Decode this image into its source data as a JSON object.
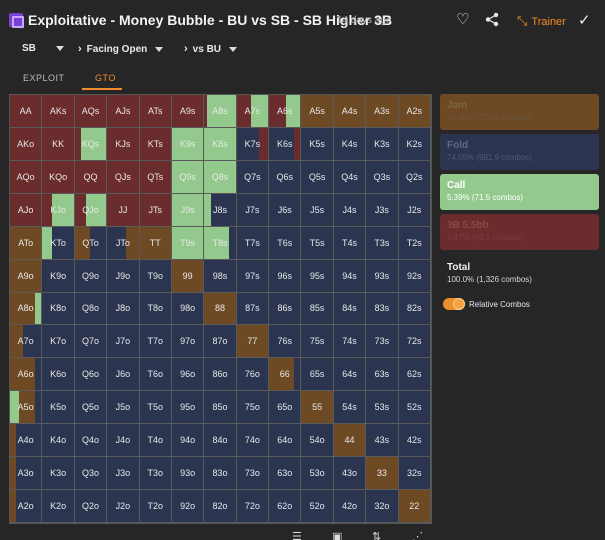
{
  "header": {
    "title": "Exploitative - Money Bubble - BU vs SB - SB Higher 3B",
    "time_ago": "14 days ago",
    "trainer_label": "Trainer",
    "icons": [
      "heart-icon",
      "share-icon",
      "trainer-icon",
      "check-icon"
    ]
  },
  "selectors": {
    "position": "SB",
    "situation": "Facing Open",
    "versus": "vs BU"
  },
  "tabs": [
    {
      "label": "EXPLOIT",
      "active": false
    },
    {
      "label": "GTO",
      "active": true
    }
  ],
  "colors": {
    "jam": "#6e4a24",
    "fold": "#2b3550",
    "call": "#93c98c",
    "threebet": "#6a2c2c"
  },
  "actions": [
    {
      "name": "Jam",
      "value": "13.05% (173.2 combos)",
      "bg": "#6e4a24",
      "text": "#7c6545",
      "sub": "#6a573c"
    },
    {
      "name": "Fold",
      "value": "74.05% (981.9 combos)",
      "bg": "#2b3550",
      "text": "#5e6a8c",
      "sub": "#4f5a78"
    },
    {
      "name": "Call",
      "value": "5.39% (71.5 combos)",
      "bg": "#93c98c",
      "text": "#ffffff",
      "sub": "#ffffff"
    },
    {
      "name": "3B 5.5bb",
      "value": "7.47% (99.1 combos)",
      "bg": "#6a2c2c",
      "text": "#8a4848",
      "sub": "#7a3e3e"
    }
  ],
  "total": {
    "label": "Total",
    "value": "100.0% (1,326 combos)"
  },
  "toggle": {
    "label": "Relative Combos",
    "on": true
  },
  "grid": [
    [
      "AA",
      "AKs",
      "AQs",
      "AJs",
      "ATs",
      "A9s",
      "A8s",
      "A7s",
      "A6s",
      "A5s",
      "A4s",
      "A3s",
      "A2s"
    ],
    [
      "AKo",
      "KK",
      "KQs",
      "KJs",
      "KTs",
      "K9s",
      "K8s",
      "K7s",
      "K6s",
      "K5s",
      "K4s",
      "K3s",
      "K2s"
    ],
    [
      "AQo",
      "KQo",
      "QQ",
      "QJs",
      "QTs",
      "Q9s",
      "Q8s",
      "Q7s",
      "Q6s",
      "Q5s",
      "Q4s",
      "Q3s",
      "Q2s"
    ],
    [
      "AJo",
      "KJo",
      "QJo",
      "JJ",
      "JTs",
      "J9s",
      "J8s",
      "J7s",
      "J6s",
      "J5s",
      "J4s",
      "J3s",
      "J2s"
    ],
    [
      "ATo",
      "KTo",
      "QTo",
      "JTo",
      "TT",
      "T9s",
      "T8s",
      "T7s",
      "T6s",
      "T5s",
      "T4s",
      "T3s",
      "T2s"
    ],
    [
      "A9o",
      "K9o",
      "Q9o",
      "J9o",
      "T9o",
      "99",
      "98s",
      "97s",
      "96s",
      "95s",
      "94s",
      "93s",
      "92s"
    ],
    [
      "A8o",
      "K8o",
      "Q8o",
      "J8o",
      "T8o",
      "98o",
      "88",
      "87s",
      "86s",
      "85s",
      "84s",
      "83s",
      "82s"
    ],
    [
      "A7o",
      "K7o",
      "Q7o",
      "J7o",
      "T7o",
      "97o",
      "87o",
      "77",
      "76s",
      "75s",
      "74s",
      "73s",
      "72s"
    ],
    [
      "A6o",
      "K6o",
      "Q6o",
      "J6o",
      "T6o",
      "96o",
      "86o",
      "76o",
      "66",
      "65s",
      "64s",
      "63s",
      "62s"
    ],
    [
      "A5o",
      "K5o",
      "Q5o",
      "J5o",
      "T5o",
      "95o",
      "85o",
      "75o",
      "65o",
      "55",
      "54s",
      "53s",
      "52s"
    ],
    [
      "A4o",
      "K4o",
      "Q4o",
      "J4o",
      "T4o",
      "94o",
      "84o",
      "74o",
      "64o",
      "54o",
      "44",
      "43s",
      "42s"
    ],
    [
      "A3o",
      "K3o",
      "Q3o",
      "J3o",
      "T3o",
      "93o",
      "83o",
      "73o",
      "63o",
      "53o",
      "43o",
      "33",
      "32s"
    ],
    [
      "A2o",
      "K2o",
      "Q2o",
      "J2o",
      "T2o",
      "92o",
      "82o",
      "72o",
      "62o",
      "52o",
      "42o",
      "32o",
      "22"
    ]
  ],
  "grid_mix": [
    [
      [
        "T",
        1
      ],
      [
        "T",
        1
      ],
      [
        "T",
        1
      ],
      [
        "T",
        1
      ],
      [
        "T",
        1
      ],
      [
        "T",
        1
      ],
      [
        "T",
        0.1,
        "C",
        0.9
      ],
      [
        "T",
        0.45,
        "C",
        0.55
      ],
      [
        "T",
        0.55,
        "C",
        0.45
      ],
      [
        "J",
        1
      ],
      [
        "J",
        1
      ],
      [
        "J",
        1
      ],
      [
        "J",
        1
      ]
    ],
    [
      [
        "T",
        1
      ],
      [
        "T",
        1
      ],
      [
        "T",
        0.2,
        "C",
        0.8
      ],
      [
        "T",
        1
      ],
      [
        "T",
        1
      ],
      [
        "C",
        1
      ],
      [
        "C",
        1
      ],
      [
        "F",
        0.7,
        "T",
        0.3
      ],
      [
        "F",
        0.8,
        "T",
        0.2
      ],
      [
        "F",
        1
      ],
      [
        "F",
        1
      ],
      [
        "F",
        1
      ],
      [
        "F",
        1
      ]
    ],
    [
      [
        "T",
        1
      ],
      [
        "T",
        1
      ],
      [
        "T",
        1
      ],
      [
        "T",
        1
      ],
      [
        "T",
        1
      ],
      [
        "C",
        1
      ],
      [
        "C",
        1
      ],
      [
        "F",
        1
      ],
      [
        "F",
        1
      ],
      [
        "F",
        1
      ],
      [
        "F",
        1
      ],
      [
        "F",
        1
      ],
      [
        "F",
        1
      ]
    ],
    [
      [
        "T",
        1
      ],
      [
        "T",
        0.3,
        "C",
        0.7
      ],
      [
        "T",
        0.35,
        "C",
        0.65
      ],
      [
        "T",
        1
      ],
      [
        "T",
        1
      ],
      [
        "C",
        1
      ],
      [
        "C",
        0.2,
        "F",
        0.8
      ],
      [
        "F",
        1
      ],
      [
        "F",
        1
      ],
      [
        "F",
        1
      ],
      [
        "F",
        1
      ],
      [
        "F",
        1
      ],
      [
        "F",
        1
      ]
    ],
    [
      [
        "J",
        1
      ],
      [
        "C",
        0.3,
        "F",
        0.7
      ],
      [
        "J",
        0.5,
        "F",
        0.5
      ],
      [
        "F",
        0.6,
        "J",
        0.4
      ],
      [
        "J",
        1
      ],
      [
        "C",
        1
      ],
      [
        "C",
        0.8,
        "F",
        0.2
      ],
      [
        "F",
        1
      ],
      [
        "F",
        1
      ],
      [
        "F",
        1
      ],
      [
        "F",
        1
      ],
      [
        "F",
        1
      ],
      [
        "F",
        1
      ]
    ],
    [
      [
        "J",
        1
      ],
      [
        "F",
        1
      ],
      [
        "F",
        1
      ],
      [
        "F",
        1
      ],
      [
        "F",
        1
      ],
      [
        "J",
        1
      ],
      [
        "F",
        1
      ],
      [
        "F",
        1
      ],
      [
        "F",
        1
      ],
      [
        "F",
        1
      ],
      [
        "F",
        1
      ],
      [
        "F",
        1
      ],
      [
        "F",
        1
      ]
    ],
    [
      [
        "J",
        0.8,
        "C",
        0.2
      ],
      [
        "F",
        1
      ],
      [
        "F",
        1
      ],
      [
        "F",
        1
      ],
      [
        "F",
        1
      ],
      [
        "F",
        1
      ],
      [
        "J",
        1
      ],
      [
        "F",
        1
      ],
      [
        "F",
        1
      ],
      [
        "F",
        1
      ],
      [
        "F",
        1
      ],
      [
        "F",
        1
      ],
      [
        "F",
        1
      ]
    ],
    [
      [
        "J",
        0.4,
        "F",
        0.6
      ],
      [
        "F",
        1
      ],
      [
        "F",
        1
      ],
      [
        "F",
        1
      ],
      [
        "F",
        1
      ],
      [
        "F",
        1
      ],
      [
        "F",
        1
      ],
      [
        "J",
        1
      ],
      [
        "F",
        1
      ],
      [
        "F",
        1
      ],
      [
        "F",
        1
      ],
      [
        "F",
        1
      ],
      [
        "F",
        1
      ]
    ],
    [
      [
        "J",
        0.8,
        "F",
        0.2
      ],
      [
        "F",
        1
      ],
      [
        "F",
        1
      ],
      [
        "F",
        1
      ],
      [
        "F",
        1
      ],
      [
        "F",
        1
      ],
      [
        "F",
        1
      ],
      [
        "F",
        1
      ],
      [
        "J",
        0.8,
        "F",
        0.2
      ],
      [
        "F",
        1
      ],
      [
        "F",
        1
      ],
      [
        "F",
        1
      ],
      [
        "F",
        1
      ]
    ],
    [
      [
        "C",
        0.3,
        "J",
        0.5,
        "F",
        0.2
      ],
      [
        "F",
        1
      ],
      [
        "F",
        1
      ],
      [
        "F",
        1
      ],
      [
        "F",
        1
      ],
      [
        "F",
        1
      ],
      [
        "F",
        1
      ],
      [
        "F",
        1
      ],
      [
        "F",
        1
      ],
      [
        "J",
        1
      ],
      [
        "F",
        1
      ],
      [
        "F",
        1
      ],
      [
        "F",
        1
      ]
    ],
    [
      [
        "J",
        0.2,
        "F",
        0.8
      ],
      [
        "F",
        1
      ],
      [
        "F",
        1
      ],
      [
        "F",
        1
      ],
      [
        "F",
        1
      ],
      [
        "F",
        1
      ],
      [
        "F",
        1
      ],
      [
        "F",
        1
      ],
      [
        "F",
        1
      ],
      [
        "F",
        1
      ],
      [
        "J",
        1
      ],
      [
        "F",
        1
      ],
      [
        "F",
        1
      ]
    ],
    [
      [
        "J",
        0.2,
        "F",
        0.8
      ],
      [
        "F",
        1
      ],
      [
        "F",
        1
      ],
      [
        "F",
        1
      ],
      [
        "F",
        1
      ],
      [
        "F",
        1
      ],
      [
        "F",
        1
      ],
      [
        "F",
        1
      ],
      [
        "F",
        1
      ],
      [
        "F",
        1
      ],
      [
        "F",
        1
      ],
      [
        "J",
        1
      ],
      [
        "F",
        1
      ]
    ],
    [
      [
        "J",
        0.2,
        "F",
        0.8
      ],
      [
        "F",
        1
      ],
      [
        "F",
        1
      ],
      [
        "F",
        1
      ],
      [
        "F",
        1
      ],
      [
        "F",
        1
      ],
      [
        "F",
        1
      ],
      [
        "F",
        1
      ],
      [
        "F",
        1
      ],
      [
        "F",
        1
      ],
      [
        "F",
        1
      ],
      [
        "F",
        1
      ],
      [
        "J",
        1
      ]
    ]
  ],
  "bottom_icons": [
    "list-icon",
    "save-icon",
    "sort-icon",
    "share-small-icon"
  ]
}
